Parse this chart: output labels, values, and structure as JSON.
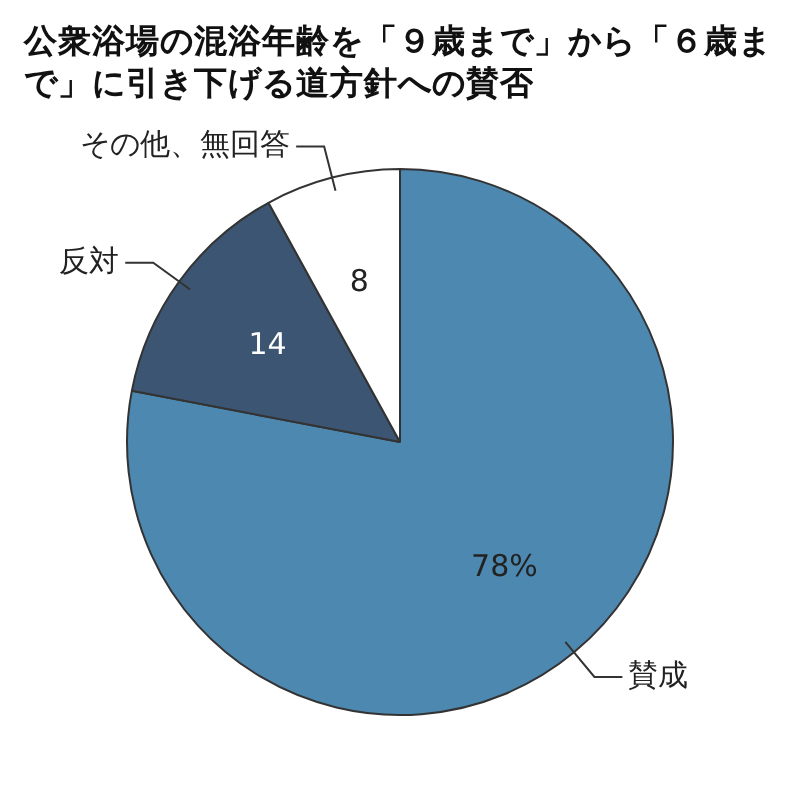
{
  "chart_data": {
    "type": "pie",
    "title": "公衆浴場の混浴年齢を「９歳まで」から「６歳まで」に引き下げる道方針への賛否",
    "categories": [
      "賛成",
      "反対",
      "その他、無回答"
    ],
    "values": [
      78,
      14,
      8
    ],
    "colors": [
      "#4d88b0",
      "#3c5573",
      "#ffffff"
    ],
    "value_labels": [
      "78%",
      "14",
      "8"
    ],
    "legend": false
  }
}
